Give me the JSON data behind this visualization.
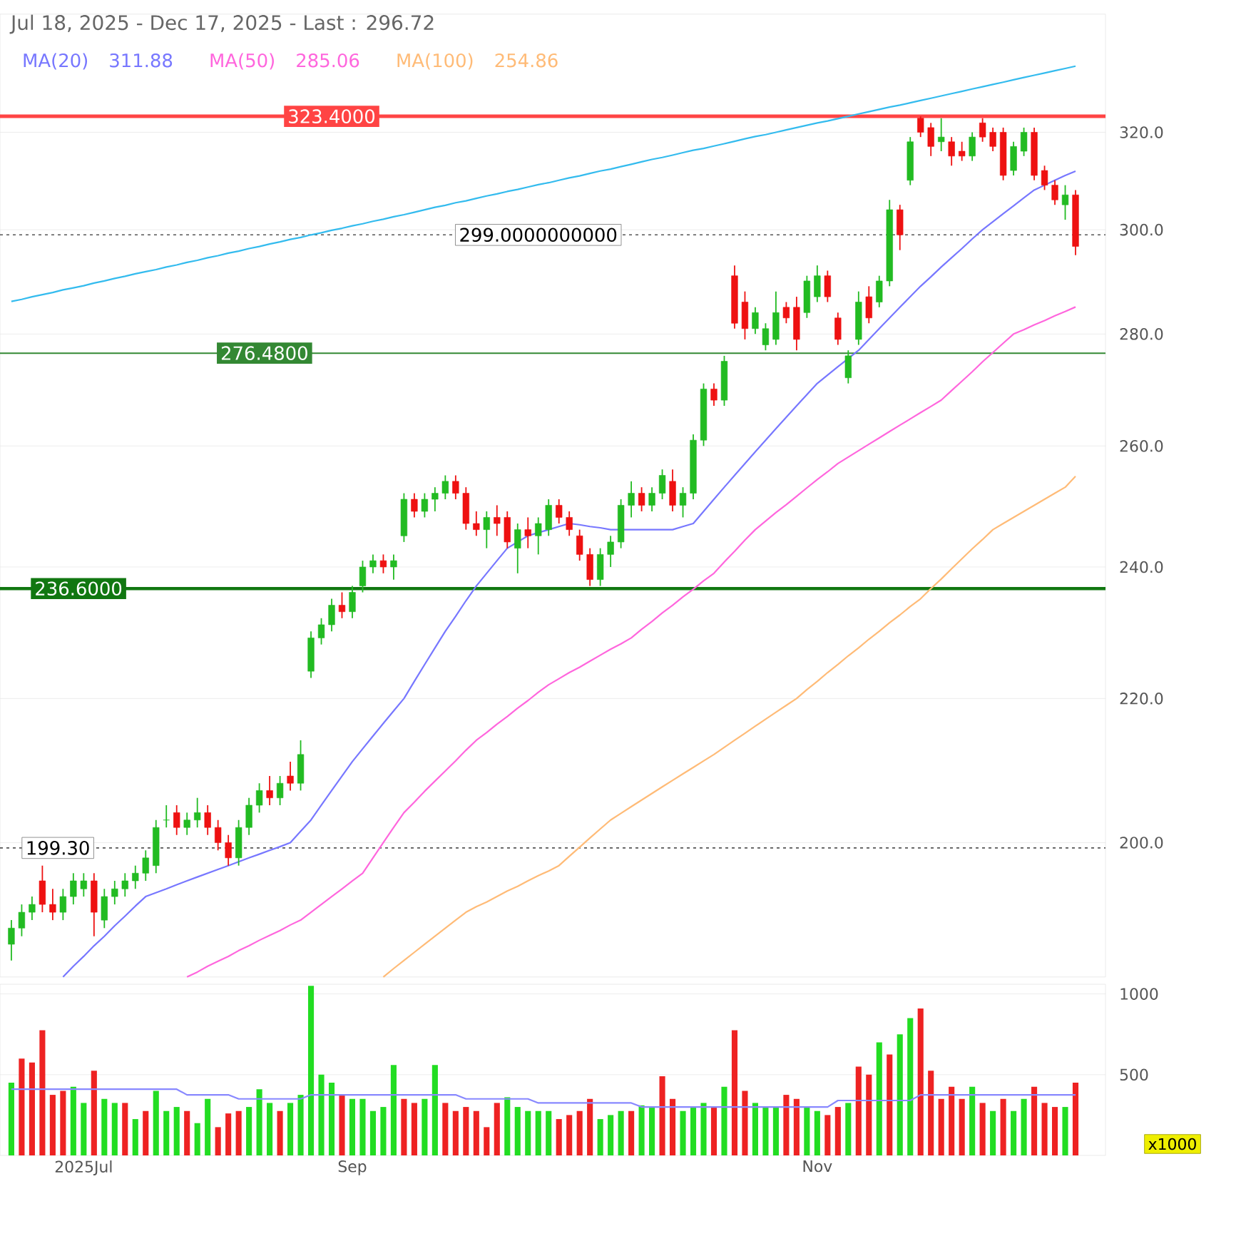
{
  "chart_data": [
    {
      "type": "candlestick",
      "title": "Jul 18, 2025 - Dec 17, 2025 - Last : 296.72",
      "categories": [
        null,
        null,
        null,
        null,
        null,
        null,
        null,
        null,
        null,
        null,
        null,
        null,
        null,
        null,
        null,
        null,
        null,
        null,
        null,
        null,
        null,
        null,
        null,
        null,
        null,
        null,
        null,
        null,
        null,
        null,
        null,
        null,
        null,
        null,
        null,
        null,
        null,
        null,
        null,
        null,
        null,
        null,
        null,
        null,
        null,
        null,
        null,
        null,
        null,
        null,
        null,
        null,
        null,
        null,
        null,
        null,
        null,
        null,
        null,
        null,
        null,
        null,
        null,
        null,
        null,
        null,
        null,
        null,
        null,
        null,
        null,
        null,
        null,
        null,
        null,
        null,
        null,
        null,
        null,
        null,
        null,
        null,
        null,
        null,
        null,
        null,
        null,
        null,
        null,
        null,
        null,
        null,
        null,
        null,
        null,
        null,
        null,
        null,
        null,
        null,
        null,
        null,
        null,
        null
      ],
      "series": [
        {
          "type": "line",
          "name": "MA(20)",
          "color": "#7777ff",
          "values": [
            null,
            null,
            null,
            null,
            null,
            183,
            184.3,
            185.5,
            186.8,
            188,
            189.3,
            190.5,
            191.8,
            193,
            193.5,
            194,
            194.5,
            195,
            195.5,
            196,
            196.5,
            197,
            197.5,
            198,
            198.5,
            199,
            199.5,
            200,
            201.5,
            203,
            205,
            207,
            209,
            211,
            212.8,
            214.6,
            216.4,
            218.2,
            220,
            222.5,
            225,
            227.5,
            230,
            232.3,
            234.7,
            237,
            239,
            241,
            243,
            244,
            245,
            245.5,
            246,
            246.5,
            247,
            246.8,
            246.5,
            246.3,
            246,
            246,
            246,
            246,
            246,
            246,
            246,
            246.5,
            247,
            249,
            251,
            253,
            255,
            257,
            259,
            261,
            263,
            265,
            267,
            269,
            271,
            272.5,
            274,
            275.5,
            277,
            279,
            281,
            283,
            285,
            287,
            289,
            290.8,
            292.7,
            294.5,
            296.3,
            298.2,
            300,
            301.6,
            303.2,
            304.8,
            306.4,
            308,
            309,
            310,
            311,
            311.88
          ]
        },
        {
          "type": "line",
          "name": "MA(50)",
          "color": "#ff66dd",
          "values": [
            null,
            null,
            null,
            null,
            null,
            null,
            null,
            null,
            null,
            null,
            null,
            null,
            null,
            null,
            null,
            null,
            null,
            183,
            183.6,
            184.3,
            184.9,
            185.5,
            186.2,
            186.8,
            187.5,
            188.1,
            188.7,
            189.4,
            190,
            191,
            192,
            193,
            194,
            195,
            196,
            198,
            200,
            202,
            204,
            205.4,
            206.9,
            208.3,
            209.7,
            211.1,
            212.6,
            214,
            215.1,
            216.3,
            217.4,
            218.6,
            219.7,
            220.9,
            222,
            222.9,
            223.8,
            224.6,
            225.5,
            226.4,
            227.3,
            228.1,
            229,
            230.3,
            231.5,
            232.8,
            234,
            235.3,
            236.5,
            237.8,
            239,
            240.8,
            242.5,
            244.3,
            246,
            247.4,
            248.8,
            250.1,
            251.5,
            252.9,
            254.3,
            255.6,
            257,
            258.1,
            259.2,
            260.3,
            261.4,
            262.5,
            263.6,
            264.7,
            265.8,
            266.9,
            268,
            269.7,
            271.4,
            273.1,
            274.9,
            276.6,
            278.3,
            280,
            280.8,
            281.7,
            282.5,
            283.4,
            284.2,
            285.06
          ]
        },
        {
          "type": "line",
          "name": "MA(100)",
          "color": "#ffbb77",
          "values": [
            null,
            null,
            null,
            null,
            null,
            null,
            null,
            null,
            null,
            null,
            null,
            null,
            null,
            null,
            null,
            null,
            null,
            null,
            null,
            null,
            null,
            null,
            null,
            null,
            null,
            null,
            null,
            null,
            null,
            null,
            null,
            null,
            null,
            null,
            null,
            null,
            183,
            184,
            185,
            186,
            187,
            188,
            189,
            190,
            191,
            191.7,
            192.3,
            193,
            193.7,
            194.3,
            195,
            195.7,
            196.3,
            197,
            198.2,
            199.4,
            200.6,
            201.8,
            203,
            203.9,
            204.8,
            205.7,
            206.6,
            207.5,
            208.4,
            209.3,
            210.2,
            211.1,
            212,
            213,
            214,
            215,
            216,
            217,
            218,
            219,
            220,
            221.3,
            222.5,
            223.8,
            225,
            226.3,
            227.5,
            228.8,
            230,
            231.3,
            232.5,
            233.8,
            235,
            236.6,
            238.1,
            239.7,
            241.3,
            242.9,
            244.4,
            246,
            247,
            248,
            249,
            250,
            251,
            252,
            253,
            254.86
          ]
        },
        {
          "type": "line",
          "color": "#33bbee",
          "values": [
            286.1,
            286.5,
            287.0,
            287.4,
            287.8,
            288.3,
            288.7,
            289.1,
            289.6,
            290.0,
            290.5,
            290.9,
            291.4,
            291.8,
            292.2,
            292.7,
            293.1,
            293.6,
            294.0,
            294.5,
            294.9,
            295.4,
            295.8,
            296.3,
            296.7,
            297.2,
            297.6,
            298.1,
            298.5,
            299.0,
            299.4,
            299.9,
            300.3,
            300.8,
            301.2,
            301.7,
            302.1,
            302.6,
            303.0,
            303.5,
            304.0,
            304.5,
            304.9,
            305.4,
            305.8,
            306.3,
            306.8,
            307.2,
            307.7,
            308.1,
            308.6,
            309.1,
            309.5,
            310.0,
            310.5,
            310.9,
            311.4,
            311.9,
            312.3,
            312.8,
            313.3,
            313.8,
            314.3,
            314.7,
            315.2,
            315.7,
            316.2,
            316.6,
            317.1,
            317.6,
            318.1,
            318.6,
            319.1,
            319.5,
            320.0,
            320.5,
            321.0,
            321.5,
            322.0,
            322.4,
            322.9,
            323.4,
            323.9,
            324.4,
            324.9,
            325.4,
            325.8,
            326.3,
            326.8,
            327.3,
            327.8,
            328.3,
            328.8,
            329.3,
            329.8,
            330.3,
            330.8,
            331.3,
            331.8,
            332.3,
            332.8,
            333.3,
            333.8,
            334.3
          ]
        },
        {
          "ohlc": [
            [
              187,
              190,
              185,
              189
            ],
            [
              189,
              192,
              188,
              191
            ],
            [
              191,
              193,
              190,
              192
            ],
            [
              195,
              197,
              191,
              192
            ],
            [
              192,
              194,
              190,
              191
            ],
            [
              191,
              194,
              190,
              193
            ],
            [
              193,
              196,
              192,
              195
            ],
            [
              194,
              196,
              193,
              195
            ],
            [
              195,
              196,
              188,
              191
            ],
            [
              190,
              194,
              189,
              193
            ],
            [
              193,
              195,
              192,
              194
            ],
            [
              194,
              196,
              193,
              195
            ],
            [
              195,
              197,
              194,
              196
            ],
            [
              196,
              199,
              195,
              198
            ],
            [
              197,
              203,
              196,
              202
            ],
            [
              203,
              205,
              202,
              203
            ],
            [
              204,
              205,
              201,
              202
            ],
            [
              202,
              204,
              201,
              203
            ],
            [
              203,
              206,
              202,
              204
            ],
            [
              204,
              205,
              201,
              202
            ],
            [
              202,
              203,
              199,
              200
            ],
            [
              200,
              201,
              197,
              198
            ],
            [
              198,
              203,
              197,
              202
            ],
            [
              202,
              206,
              201,
              205
            ],
            [
              205,
              208,
              204,
              207
            ],
            [
              207,
              209,
              205,
              206
            ],
            [
              206,
              209,
              205,
              208
            ],
            [
              209,
              211,
              207,
              208
            ],
            [
              208,
              214,
              207,
              212
            ],
            [
              224,
              230,
              223,
              229
            ],
            [
              229,
              232,
              228,
              231
            ],
            [
              231,
              235,
              230,
              234
            ],
            [
              234,
              236,
              232,
              233
            ],
            [
              233,
              237,
              232,
              236
            ],
            [
              237,
              241,
              236,
              240
            ],
            [
              240,
              242,
              239,
              241
            ],
            [
              241,
              242,
              239,
              240
            ],
            [
              240,
              242,
              238,
              241
            ],
            [
              245,
              252,
              244,
              251
            ],
            [
              251,
              252,
              248,
              249
            ],
            [
              249,
              252,
              248,
              251
            ],
            [
              251,
              253,
              249,
              252
            ],
            [
              252,
              255,
              251,
              254
            ],
            [
              254,
              255,
              251,
              252
            ],
            [
              252,
              253,
              246,
              247
            ],
            [
              247,
              249,
              245,
              246
            ],
            [
              246,
              249,
              243,
              248
            ],
            [
              248,
              250,
              245,
              247
            ],
            [
              248,
              249,
              243,
              244
            ],
            [
              243,
              247,
              239,
              246
            ],
            [
              246,
              248,
              243,
              245
            ],
            [
              245,
              248,
              242,
              247
            ],
            [
              246,
              251,
              245,
              250
            ],
            [
              250,
              251,
              247,
              248
            ],
            [
              248,
              249,
              245,
              246
            ],
            [
              245,
              246,
              241,
              242
            ],
            [
              242,
              243,
              237,
              238
            ],
            [
              238,
              243,
              237,
              242
            ],
            [
              242,
              245,
              240,
              244
            ],
            [
              244,
              251,
              243,
              250
            ],
            [
              250,
              254,
              248,
              252
            ],
            [
              252,
              253,
              249,
              250
            ],
            [
              250,
              253,
              249,
              252
            ],
            [
              252,
              256,
              251,
              255
            ],
            [
              254,
              256,
              249,
              250
            ],
            [
              250,
              253,
              248,
              252
            ],
            [
              252,
              262,
              251,
              261
            ],
            [
              261,
              271,
              260,
              270
            ],
            [
              270,
              271,
              267,
              268
            ],
            [
              268,
              276,
              267,
              275
            ],
            [
              291,
              293,
              281,
              282
            ],
            [
              286,
              288,
              279,
              281
            ],
            [
              281,
              285,
              280,
              284
            ],
            [
              278,
              282,
              277,
              281
            ],
            [
              279,
              288,
              278,
              284
            ],
            [
              285,
              286,
              282,
              283
            ],
            [
              285,
              287,
              277,
              279
            ],
            [
              284,
              291,
              283,
              290
            ],
            [
              287,
              293,
              286,
              291
            ],
            [
              291,
              292,
              286,
              287
            ],
            [
              283,
              284,
              278,
              279
            ],
            [
              272,
              277,
              271,
              276
            ],
            [
              279,
              288,
              278,
              286
            ],
            [
              287,
              289,
              282,
              283
            ],
            [
              286,
              291,
              285,
              290
            ],
            [
              290,
              306,
              289,
              304
            ],
            [
              304,
              305,
              296,
              299
            ],
            [
              310,
              319,
              309,
              318
            ],
            [
              323,
              323.4,
              319,
              320
            ],
            [
              321,
              322,
              315,
              317
            ],
            [
              318,
              323,
              316,
              319
            ],
            [
              318,
              319,
              313,
              315
            ],
            [
              316,
              318,
              314,
              315
            ],
            [
              315,
              320,
              314,
              319
            ],
            [
              322,
              323,
              318,
              319
            ],
            [
              320,
              321,
              316,
              317
            ],
            [
              320,
              321,
              310,
              311
            ],
            [
              312,
              318,
              311,
              317
            ],
            [
              316,
              321,
              315,
              320
            ],
            [
              320,
              321,
              310,
              311
            ],
            [
              312,
              313,
              308,
              309
            ],
            [
              309,
              310,
              305,
              306
            ],
            [
              305,
              309,
              302,
              307
            ],
            [
              307,
              308,
              295,
              296.72
            ]
          ]
        }
      ],
      "log": true,
      "ylim": [
        183,
        346
      ],
      "yticks": [
        {
          "value": 200,
          "label": "200.0"
        },
        {
          "value": 220,
          "label": "220.0"
        },
        {
          "value": 240,
          "label": "240.0"
        },
        {
          "value": 260,
          "label": "260.0"
        },
        {
          "value": 280,
          "label": "280.0"
        },
        {
          "value": 300,
          "label": "300.0"
        },
        {
          "value": 320,
          "label": "320.0"
        }
      ],
      "grid": "y",
      "legend": "top left",
      "tick_labels": "y",
      "ref_lines": [
        {
          "axis": "y",
          "value": 323.4,
          "label": "323.4000",
          "color": "#ff4444"
        },
        {
          "axis": "y",
          "value": 299,
          "label": "299.0000000000",
          "color": "#555555",
          "line_style": "dotted"
        },
        {
          "axis": "y",
          "value": 276.48,
          "label": "276.4800",
          "color": "#338833"
        },
        {
          "axis": "y",
          "value": 236.6,
          "label": "236.6000",
          "color": "#117711"
        },
        {
          "axis": "y",
          "value": 199.3,
          "label": "199.30",
          "color": "#555555",
          "line_style": "dotted"
        }
      ],
      "annotations": [
        "311.88",
        "285.06",
        "254.86"
      ]
    },
    {
      "type": "bar",
      "categories": [
        null,
        null,
        null,
        null,
        null,
        null,
        null,
        "2025Jul",
        null,
        null,
        null,
        null,
        null,
        null,
        null,
        null,
        null,
        null,
        null,
        null,
        null,
        null,
        null,
        null,
        null,
        null,
        null,
        null,
        null,
        null,
        null,
        null,
        null,
        "Sep",
        null,
        null,
        null,
        null,
        null,
        null,
        null,
        null,
        null,
        null,
        null,
        null,
        null,
        null,
        null,
        null,
        null,
        null,
        null,
        null,
        null,
        null,
        null,
        null,
        null,
        null,
        null,
        null,
        null,
        null,
        null,
        null,
        null,
        null,
        null,
        null,
        null,
        null,
        null,
        null,
        null,
        null,
        null,
        null,
        "Nov",
        null,
        null,
        null,
        null,
        null,
        null,
        null,
        null,
        null,
        null,
        null,
        null,
        null,
        null,
        null,
        null,
        null,
        null,
        null,
        null,
        null,
        null,
        null,
        null,
        null
      ],
      "series": [
        {
          "values": [
            450,
            600,
            575,
            775,
            375,
            400,
            425,
            325,
            525,
            350,
            325,
            325,
            225,
            275,
            400,
            275,
            300,
            275,
            200,
            350,
            175,
            260,
            275,
            300,
            410,
            325,
            275,
            325,
            375,
            1050,
            500,
            450,
            375,
            350,
            350,
            275,
            300,
            560,
            350,
            325,
            350,
            560,
            325,
            275,
            300,
            275,
            175,
            325,
            360,
            300,
            275,
            275,
            275,
            225,
            250,
            275,
            350,
            225,
            250,
            275,
            275,
            310,
            300,
            490,
            350,
            275,
            300,
            325,
            300,
            425,
            775,
            400,
            325,
            300,
            300,
            375,
            350,
            300,
            275,
            250,
            300,
            325,
            550,
            500,
            700,
            625,
            750,
            850,
            910,
            525,
            350,
            425,
            350,
            425,
            325,
            275,
            350,
            275,
            350,
            425,
            325,
            300,
            300,
            450
          ],
          "colors": [
            "#22dd22",
            "#ee2222",
            "#ee2222",
            "#ee2222",
            "#ee2222",
            "#ee2222",
            "#22dd22",
            "#22dd22",
            "#ee2222",
            "#22dd22",
            "#22dd22",
            "#ee2222",
            "#22dd22",
            "#ee2222",
            "#22dd22",
            "#22dd22",
            "#22dd22",
            "#ee2222",
            "#22dd22",
            "#22dd22",
            "#ee2222",
            "#ee2222",
            "#ee2222",
            "#22dd22",
            "#22dd22",
            "#22dd22",
            "#ee2222",
            "#22dd22",
            "#22dd22",
            "#22dd22",
            "#22dd22",
            "#22dd22",
            "#ee2222",
            "#22dd22",
            "#22dd22",
            "#22dd22",
            "#22dd22",
            "#22dd22",
            "#ee2222",
            "#ee2222",
            "#22dd22",
            "#22dd22",
            "#ee2222",
            "#ee2222",
            "#ee2222",
            "#ee2222",
            "#ee2222",
            "#ee2222",
            "#22dd22",
            "#22dd22",
            "#22dd22",
            "#22dd22",
            "#22dd22",
            "#ee2222",
            "#ee2222",
            "#ee2222",
            "#ee2222",
            "#22dd22",
            "#22dd22",
            "#22dd22",
            "#ee2222",
            "#22dd22",
            "#22dd22",
            "#ee2222",
            "#ee2222",
            "#22dd22",
            "#22dd22",
            "#22dd22",
            "#ee2222",
            "#22dd22",
            "#ee2222",
            "#ee2222",
            "#22dd22",
            "#22dd22",
            "#22dd22",
            "#ee2222",
            "#ee2222",
            "#22dd22",
            "#22dd22",
            "#ee2222",
            "#ee2222",
            "#22dd22",
            "#ee2222",
            "#ee2222",
            "#22dd22",
            "#ee2222",
            "#22dd22",
            "#22dd22",
            "#ee2222",
            "#ee2222",
            "#ee2222",
            "#ee2222",
            "#ee2222",
            "#22dd22",
            "#ee2222",
            "#22dd22",
            "#ee2222",
            "#22dd22",
            "#22dd22",
            "#ee2222",
            "#ee2222",
            "#ee2222",
            "#22dd22",
            "#ee2222"
          ]
        },
        {
          "type": "line",
          "color": "#8888ff",
          "values": [
            410,
            410,
            410,
            410,
            410,
            410,
            410,
            410,
            410,
            410,
            410,
            410,
            410,
            410,
            410,
            410,
            410,
            375,
            375,
            375,
            375,
            375,
            350,
            350,
            350,
            350,
            350,
            350,
            350,
            375,
            375,
            375,
            375,
            375,
            375,
            375,
            375,
            375,
            375,
            375,
            375,
            375,
            375,
            375,
            350,
            350,
            350,
            350,
            350,
            350,
            350,
            325,
            325,
            325,
            325,
            325,
            325,
            325,
            325,
            325,
            325,
            300,
            300,
            300,
            300,
            300,
            300,
            300,
            300,
            300,
            300,
            300,
            300,
            300,
            300,
            300,
            300,
            300,
            300,
            300,
            340,
            340,
            340,
            340,
            340,
            340,
            340,
            340,
            375,
            375,
            375,
            375,
            375,
            375,
            375,
            375,
            375,
            375,
            375,
            375,
            375,
            375,
            375,
            375
          ]
        }
      ],
      "ylim": [
        0,
        1060
      ],
      "yticks": [
        500,
        1000
      ],
      "grid": "y",
      "annotations": [
        "x1000"
      ]
    }
  ]
}
